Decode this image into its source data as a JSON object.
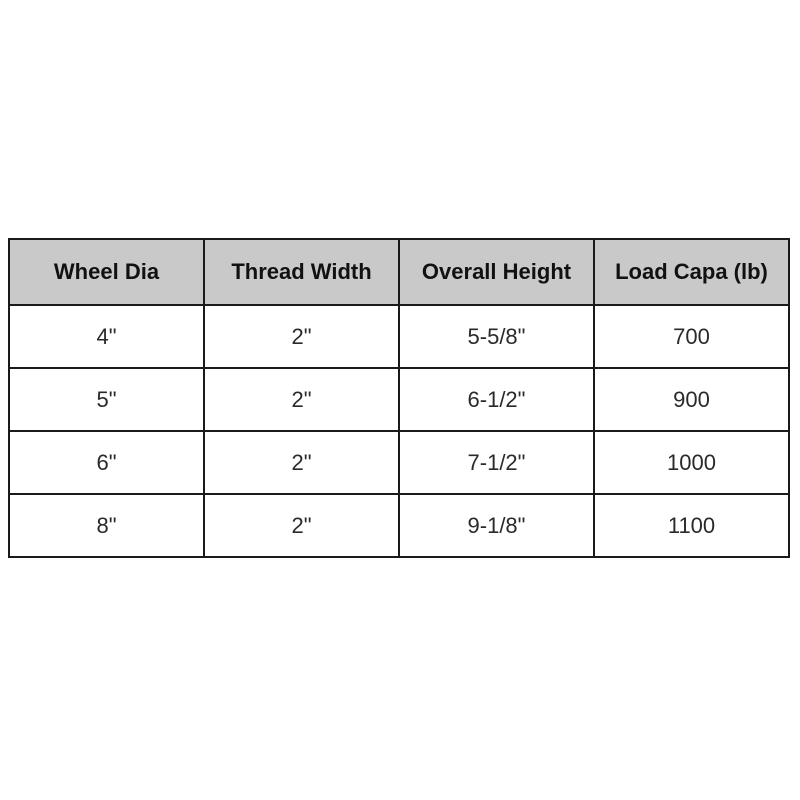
{
  "colors": {
    "page_background": "#ffffff",
    "header_background": "#c9c9c9",
    "border": "#1a1a1a",
    "header_text": "#111111",
    "cell_text": "#2a2a2a"
  },
  "chart_data": {
    "type": "table",
    "title": "",
    "columns": [
      "Wheel Dia",
      "Thread Width",
      "Overall Height",
      "Load Capa (lb)"
    ],
    "rows": [
      [
        "4\"",
        "2\"",
        "5-5/8\"",
        "700"
      ],
      [
        "5\"",
        "2\"",
        "6-1/2\"",
        "900"
      ],
      [
        "6\"",
        "2\"",
        "7-1/2\"",
        "1000"
      ],
      [
        "8\"",
        "2\"",
        "9-1/8\"",
        "1100"
      ]
    ]
  }
}
